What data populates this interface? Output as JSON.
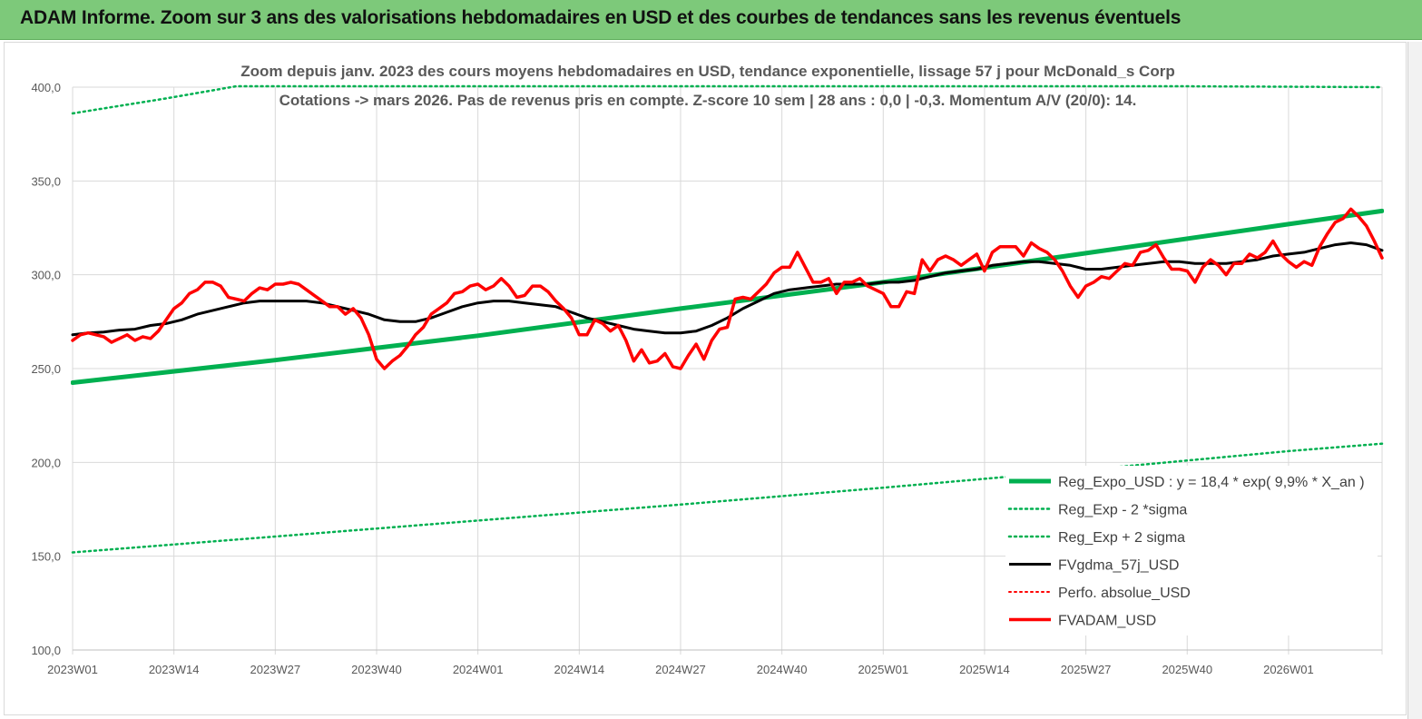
{
  "banner": {
    "title": "ADAM Informe. Zoom sur 3 ans des valorisations hebdomadaires en USD et des courbes de tendances sans les revenus éventuels"
  },
  "chart_data": {
    "type": "line",
    "title": "Zoom depuis janv. 2023 des cours moyens hebdomadaires en USD, tendance exponentielle, lissage 57 j pour McDonald_s Corp",
    "subtitle": "Cotations -> mars 2026. Pas de revenus pris en  compte. Z-score 10 sem  | 28 ans : 0,0  | -0,3. Momentum A/V (20/0): 14.",
    "xlabel": "",
    "ylabel": "",
    "ylim": [
      100,
      400
    ],
    "yticks": [
      "100,0",
      "150,0",
      "200,0",
      "250,0",
      "300,0",
      "350,0",
      "400,0"
    ],
    "ytick_values": [
      100,
      150,
      200,
      250,
      300,
      350,
      400
    ],
    "x_range_weeks": [
      0,
      168
    ],
    "xticks": [
      {
        "label": "2023W01",
        "week": 0
      },
      {
        "label": "2023W14",
        "week": 13
      },
      {
        "label": "2023W27",
        "week": 26
      },
      {
        "label": "2023W40",
        "week": 39
      },
      {
        "label": "2024W01",
        "week": 52
      },
      {
        "label": "2024W14",
        "week": 65
      },
      {
        "label": "2024W27",
        "week": 78
      },
      {
        "label": "2024W40",
        "week": 91
      },
      {
        "label": "2025W01",
        "week": 104
      },
      {
        "label": "2025W14",
        "week": 117
      },
      {
        "label": "2025W27",
        "week": 130
      },
      {
        "label": "2025W40",
        "week": 143
      },
      {
        "label": "2026W01",
        "week": 156
      }
    ],
    "grid": true,
    "legend_position": "bottom-right",
    "series": [
      {
        "name": "Reg_Expo_USD : y = 18,4 * exp( 9,9% *  X_an )",
        "color": "#00b050",
        "style": "solid",
        "width": 5,
        "points": [
          [
            0,
            242.5
          ],
          [
            26,
            254.5
          ],
          [
            52,
            267.5
          ],
          [
            78,
            282
          ],
          [
            104,
            296
          ],
          [
            130,
            311.5
          ],
          [
            156,
            327
          ],
          [
            168,
            334
          ]
        ]
      },
      {
        "name": "Reg_Exp - 2 *sigma",
        "color": "#00b050",
        "style": "dotted",
        "width": 2.5,
        "points": [
          [
            0,
            152
          ],
          [
            26,
            160.5
          ],
          [
            52,
            169
          ],
          [
            78,
            177.5
          ],
          [
            104,
            186.5
          ],
          [
            130,
            196
          ],
          [
            156,
            206
          ],
          [
            168,
            210
          ]
        ]
      },
      {
        "name": "Reg_Exp + 2 sigma",
        "color": "#00b050",
        "style": "dotted",
        "width": 2.5,
        "points": [
          [
            0,
            386
          ],
          [
            12,
            394
          ],
          [
            21,
            400.5
          ],
          [
            142,
            400.5
          ],
          [
            168,
            400
          ]
        ]
      },
      {
        "name": "FVgdma_57j_USD",
        "color": "#000000",
        "style": "solid",
        "width": 3,
        "points": [
          [
            0,
            268
          ],
          [
            2,
            269
          ],
          [
            4,
            269.5
          ],
          [
            6,
            270.5
          ],
          [
            8,
            271
          ],
          [
            10,
            273
          ],
          [
            12,
            274
          ],
          [
            14,
            276
          ],
          [
            16,
            279
          ],
          [
            18,
            281
          ],
          [
            20,
            283
          ],
          [
            22,
            285
          ],
          [
            24,
            286
          ],
          [
            26,
            286
          ],
          [
            28,
            286
          ],
          [
            30,
            286
          ],
          [
            32,
            285
          ],
          [
            34,
            283
          ],
          [
            36,
            281
          ],
          [
            38,
            279
          ],
          [
            40,
            276
          ],
          [
            42,
            275
          ],
          [
            44,
            275
          ],
          [
            46,
            277
          ],
          [
            48,
            280
          ],
          [
            50,
            283
          ],
          [
            52,
            285
          ],
          [
            54,
            286
          ],
          [
            56,
            286
          ],
          [
            58,
            285
          ],
          [
            60,
            284
          ],
          [
            62,
            283
          ],
          [
            64,
            280
          ],
          [
            66,
            277
          ],
          [
            68,
            275
          ],
          [
            70,
            273
          ],
          [
            72,
            271
          ],
          [
            74,
            270
          ],
          [
            76,
            269
          ],
          [
            78,
            269
          ],
          [
            80,
            270
          ],
          [
            82,
            273
          ],
          [
            84,
            277
          ],
          [
            86,
            282
          ],
          [
            88,
            286
          ],
          [
            90,
            290
          ],
          [
            92,
            292
          ],
          [
            94,
            293
          ],
          [
            96,
            294
          ],
          [
            98,
            295
          ],
          [
            100,
            295
          ],
          [
            102,
            295
          ],
          [
            104,
            296
          ],
          [
            106,
            296
          ],
          [
            108,
            297
          ],
          [
            110,
            299
          ],
          [
            112,
            301
          ],
          [
            114,
            302
          ],
          [
            116,
            303
          ],
          [
            118,
            305
          ],
          [
            120,
            306
          ],
          [
            122,
            307
          ],
          [
            124,
            307
          ],
          [
            126,
            306
          ],
          [
            128,
            305
          ],
          [
            130,
            303
          ],
          [
            132,
            303
          ],
          [
            134,
            304
          ],
          [
            136,
            305
          ],
          [
            138,
            306
          ],
          [
            140,
            307
          ],
          [
            142,
            307
          ],
          [
            144,
            306
          ],
          [
            146,
            306
          ],
          [
            148,
            306
          ],
          [
            150,
            307
          ],
          [
            152,
            308
          ],
          [
            154,
            310
          ],
          [
            156,
            311
          ],
          [
            158,
            312
          ],
          [
            160,
            314
          ],
          [
            162,
            316
          ],
          [
            164,
            317
          ],
          [
            166,
            316
          ],
          [
            168,
            313
          ]
        ]
      },
      {
        "name": "Perfo. absolue_USD",
        "color": "#ff0000",
        "style": "dotted",
        "width": 2,
        "points": []
      },
      {
        "name": "FVADAM_USD",
        "color": "#ff0000",
        "style": "solid",
        "width": 3.5,
        "points": [
          [
            0,
            265
          ],
          [
            1,
            268
          ],
          [
            2,
            269
          ],
          [
            3,
            268
          ],
          [
            4,
            267
          ],
          [
            5,
            264
          ],
          [
            6,
            266
          ],
          [
            7,
            268
          ],
          [
            8,
            265
          ],
          [
            9,
            267
          ],
          [
            10,
            266
          ],
          [
            11,
            270
          ],
          [
            12,
            276
          ],
          [
            13,
            282
          ],
          [
            14,
            285
          ],
          [
            15,
            290
          ],
          [
            16,
            292
          ],
          [
            17,
            296
          ],
          [
            18,
            296
          ],
          [
            19,
            294
          ],
          [
            20,
            288
          ],
          [
            21,
            287
          ],
          [
            22,
            286
          ],
          [
            23,
            290
          ],
          [
            24,
            293
          ],
          [
            25,
            292
          ],
          [
            26,
            295
          ],
          [
            27,
            295
          ],
          [
            28,
            296
          ],
          [
            29,
            295
          ],
          [
            30,
            292
          ],
          [
            31,
            289
          ],
          [
            32,
            286
          ],
          [
            33,
            283
          ],
          [
            34,
            283
          ],
          [
            35,
            279
          ],
          [
            36,
            282
          ],
          [
            37,
            277
          ],
          [
            38,
            268
          ],
          [
            39,
            255
          ],
          [
            40,
            250
          ],
          [
            41,
            254
          ],
          [
            42,
            257
          ],
          [
            43,
            262
          ],
          [
            44,
            268
          ],
          [
            45,
            272
          ],
          [
            46,
            279
          ],
          [
            47,
            282
          ],
          [
            48,
            285
          ],
          [
            49,
            290
          ],
          [
            50,
            291
          ],
          [
            51,
            294
          ],
          [
            52,
            295
          ],
          [
            53,
            292
          ],
          [
            54,
            294
          ],
          [
            55,
            298
          ],
          [
            56,
            294
          ],
          [
            57,
            288
          ],
          [
            58,
            289
          ],
          [
            59,
            294
          ],
          [
            60,
            294
          ],
          [
            61,
            291
          ],
          [
            62,
            286
          ],
          [
            63,
            282
          ],
          [
            64,
            277
          ],
          [
            65,
            268
          ],
          [
            66,
            268
          ],
          [
            67,
            276
          ],
          [
            68,
            274
          ],
          [
            69,
            270
          ],
          [
            70,
            273
          ],
          [
            71,
            265
          ],
          [
            72,
            254
          ],
          [
            73,
            260
          ],
          [
            74,
            253
          ],
          [
            75,
            254
          ],
          [
            76,
            258
          ],
          [
            77,
            251
          ],
          [
            78,
            250
          ],
          [
            79,
            257
          ],
          [
            80,
            263
          ],
          [
            81,
            255
          ],
          [
            82,
            265
          ],
          [
            83,
            271
          ],
          [
            84,
            272
          ],
          [
            85,
            287
          ],
          [
            86,
            288
          ],
          [
            87,
            287
          ],
          [
            88,
            291
          ],
          [
            89,
            295
          ],
          [
            90,
            301
          ],
          [
            91,
            304
          ],
          [
            92,
            304
          ],
          [
            93,
            312
          ],
          [
            94,
            304
          ],
          [
            95,
            296
          ],
          [
            96,
            296
          ],
          [
            97,
            298
          ],
          [
            98,
            290
          ],
          [
            99,
            296
          ],
          [
            100,
            296
          ],
          [
            101,
            298
          ],
          [
            102,
            294
          ],
          [
            103,
            292
          ],
          [
            104,
            290
          ],
          [
            105,
            283
          ],
          [
            106,
            283
          ],
          [
            107,
            291
          ],
          [
            108,
            290
          ],
          [
            109,
            308
          ],
          [
            110,
            302
          ],
          [
            111,
            308
          ],
          [
            112,
            310
          ],
          [
            113,
            308
          ],
          [
            114,
            305
          ],
          [
            115,
            308
          ],
          [
            116,
            311
          ],
          [
            117,
            302
          ],
          [
            118,
            312
          ],
          [
            119,
            315
          ],
          [
            120,
            315
          ],
          [
            121,
            315
          ],
          [
            122,
            310
          ],
          [
            123,
            317
          ],
          [
            124,
            314
          ],
          [
            125,
            312
          ],
          [
            126,
            308
          ],
          [
            127,
            302
          ],
          [
            128,
            294
          ],
          [
            129,
            288
          ],
          [
            130,
            294
          ],
          [
            131,
            296
          ],
          [
            132,
            299
          ],
          [
            133,
            298
          ],
          [
            134,
            302
          ],
          [
            135,
            306
          ],
          [
            136,
            305
          ],
          [
            137,
            312
          ],
          [
            138,
            313
          ],
          [
            139,
            316
          ],
          [
            140,
            309
          ],
          [
            141,
            303
          ],
          [
            142,
            303
          ],
          [
            143,
            302
          ],
          [
            144,
            296
          ],
          [
            145,
            304
          ],
          [
            146,
            308
          ],
          [
            147,
            305
          ],
          [
            148,
            300
          ],
          [
            149,
            306
          ],
          [
            150,
            306
          ],
          [
            151,
            311
          ],
          [
            152,
            309
          ],
          [
            153,
            312
          ],
          [
            154,
            318
          ],
          [
            155,
            311
          ],
          [
            156,
            307
          ],
          [
            157,
            304
          ],
          [
            158,
            307
          ],
          [
            159,
            305
          ],
          [
            160,
            315
          ],
          [
            161,
            322
          ],
          [
            162,
            328
          ],
          [
            163,
            330
          ],
          [
            164,
            335
          ],
          [
            165,
            331
          ],
          [
            166,
            326
          ],
          [
            167,
            318
          ],
          [
            168,
            309
          ]
        ]
      }
    ]
  }
}
